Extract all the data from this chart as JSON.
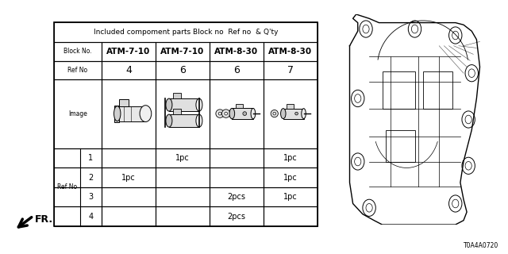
{
  "title": "Included compoment parts Block no  Ref no  & Q'ty",
  "bg_color": "#ffffff",
  "block_nos": [
    "ATM-7-10",
    "ATM-7-10",
    "ATM-8-30",
    "ATM-8-30"
  ],
  "ref_nos": [
    "4",
    "6",
    "6",
    "7"
  ],
  "qty_data": [
    [
      "",
      "1pc",
      "",
      "1pc"
    ],
    [
      "1pc",
      "",
      "",
      "1pc"
    ],
    [
      "",
      "",
      "2pcs",
      "1pc"
    ],
    [
      "",
      "",
      "2pcs",
      ""
    ]
  ],
  "ref_row_labels": [
    "1",
    "2",
    "3",
    "4"
  ],
  "diagram_code": "T0A4A0720",
  "fr_label": "FR."
}
